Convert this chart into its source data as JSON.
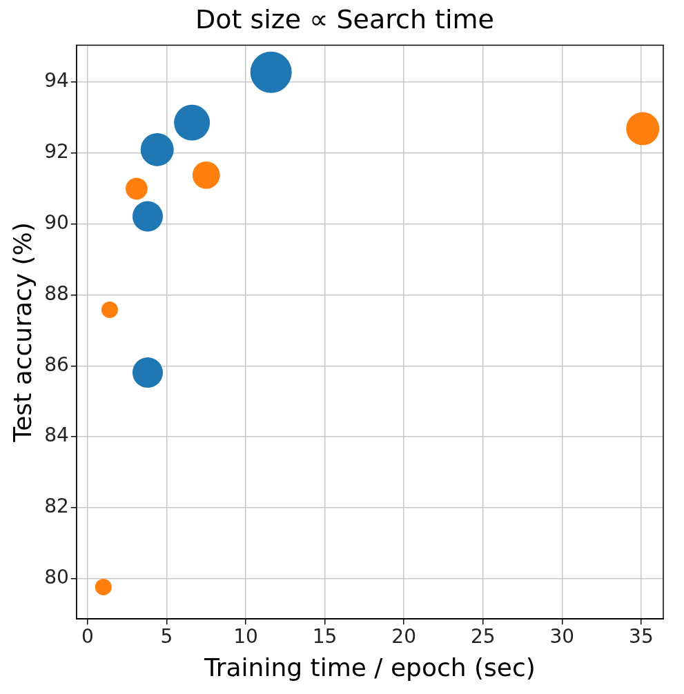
{
  "chart_data": {
    "type": "bubble",
    "title": "Dot size ∝ Search time",
    "xlabel": "Training time / epoch (sec)",
    "ylabel": "Test accuracy (%)",
    "series": [
      {
        "color": "#1f77b4",
        "x": [
          11.6,
          6.6,
          4.4,
          3.8,
          3.8
        ],
        "values": [
          94.27,
          92.85,
          92.09,
          90.21,
          85.81
        ],
        "sizes": [
          1,
          0.75,
          0.64,
          0.54,
          0.54
        ]
      },
      {
        "color": "#ff7f0e",
        "x": [
          35.1,
          7.5,
          3.1,
          1.4,
          1.0
        ],
        "values": [
          92.68,
          91.37,
          90.99,
          87.58,
          79.77
        ],
        "sizes": [
          0.64,
          0.44,
          0.28,
          0.16,
          0.16
        ]
      }
    ],
    "xlim": [
      -0.7,
      36.4
    ],
    "ylim": [
      78.87,
      95.03
    ],
    "xticks": [
      0,
      5,
      10,
      15,
      20,
      25,
      30,
      35
    ],
    "yticks": [
      80,
      82,
      84,
      86,
      88,
      90,
      92,
      94
    ],
    "grid": true,
    "legend": false
  }
}
